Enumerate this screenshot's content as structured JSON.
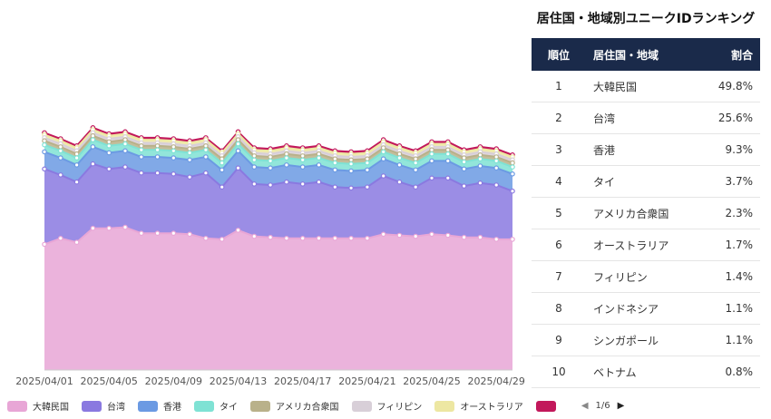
{
  "chart_data": {
    "type": "area",
    "stacked": true,
    "x": [
      "2025/04/01",
      "2025/04/02",
      "2025/04/03",
      "2025/04/04",
      "2025/04/05",
      "2025/04/06",
      "2025/04/07",
      "2025/04/08",
      "2025/04/09",
      "2025/04/10",
      "2025/04/11",
      "2025/04/12",
      "2025/04/13",
      "2025/04/14",
      "2025/04/15",
      "2025/04/16",
      "2025/04/17",
      "2025/04/18",
      "2025/04/19",
      "2025/04/20",
      "2025/04/21",
      "2025/04/22",
      "2025/04/23",
      "2025/04/24",
      "2025/04/25",
      "2025/04/26",
      "2025/04/27",
      "2025/04/28",
      "2025/04/29",
      "2025/04/30"
    ],
    "xtick_labels": [
      "2025/04/01",
      "2025/04/05",
      "2025/04/09",
      "2025/04/13",
      "2025/04/17",
      "2025/04/21",
      "2025/04/25",
      "2025/04/29"
    ],
    "series": [
      {
        "name": "大韓民国",
        "color": "#e8a6d6",
        "values": [
          125,
          131,
          127,
          141,
          141,
          142,
          136,
          136,
          136,
          135,
          131,
          130,
          139,
          133,
          132,
          131,
          131,
          131,
          131,
          131,
          131,
          135,
          134,
          133,
          135,
          134,
          132,
          132,
          130,
          130
        ]
      },
      {
        "name": "台湾",
        "color": "#8a79e0",
        "values": [
          75,
          63,
          60,
          64,
          59,
          60,
          60,
          60,
          59,
          57,
          65,
          52,
          62,
          52,
          52,
          56,
          54,
          56,
          51,
          50,
          51,
          58,
          53,
          49,
          56,
          57,
          51,
          54,
          54,
          48
        ]
      },
      {
        "name": "香港",
        "color": "#6b9ae3",
        "values": [
          17,
          17,
          17,
          17,
          16,
          16,
          16,
          16,
          16,
          17,
          16,
          17,
          17,
          17,
          17,
          17,
          17,
          17,
          17,
          17,
          17,
          17,
          17,
          17,
          17,
          17,
          17,
          17,
          17,
          17
        ]
      },
      {
        "name": "タイ",
        "color": "#7fe2d4",
        "values": [
          7,
          7,
          7,
          7,
          7,
          7,
          7,
          7,
          7,
          7,
          7,
          7,
          7,
          7,
          7,
          7,
          7,
          7,
          7,
          7,
          7,
          7,
          7,
          7,
          7,
          7,
          7,
          7,
          7,
          7
        ]
      },
      {
        "name": "アメリカ合衆国",
        "color": "#b9b18a",
        "values": [
          4,
          4,
          4,
          4,
          4,
          4,
          4,
          4,
          4,
          4,
          4,
          4,
          4,
          4,
          4,
          4,
          4,
          4,
          4,
          4,
          4,
          4,
          4,
          4,
          4,
          4,
          4,
          4,
          4,
          4
        ]
      },
      {
        "name": "フィリピン",
        "color": "#d8cfd8",
        "values": [
          3,
          3,
          3,
          3,
          3,
          3,
          3,
          3,
          3,
          3,
          3,
          3,
          3,
          3,
          3,
          3,
          3,
          3,
          3,
          3,
          3,
          3,
          3,
          3,
          3,
          3,
          3,
          3,
          3,
          3
        ]
      },
      {
        "name": "オーストラリア",
        "color": "#ede7a2",
        "values": [
          3,
          3,
          3,
          3,
          3,
          3,
          3,
          3,
          3,
          3,
          3,
          3,
          3,
          3,
          3,
          3,
          3,
          3,
          3,
          3,
          3,
          3,
          3,
          3,
          3,
          3,
          3,
          3,
          3,
          3
        ]
      },
      {
        "name": "",
        "color": "#c2185b",
        "values": [
          2,
          2,
          2,
          2,
          2,
          2,
          2,
          2,
          2,
          2,
          2,
          2,
          2,
          2,
          2,
          2,
          2,
          2,
          2,
          2,
          2,
          2,
          2,
          2,
          2,
          2,
          2,
          2,
          2,
          2
        ]
      }
    ],
    "ylim": [
      0,
      350
    ],
    "legend_position": "bottom",
    "legend_page": "1/6",
    "grid": false
  },
  "ranking": {
    "title": "居住国・地域別ユニークIDランキング",
    "headers": {
      "rank": "順位",
      "name": "居住国・地域",
      "share": "割合"
    },
    "rows": [
      {
        "rank": "1",
        "name": "大韓民国",
        "share": "49.8%"
      },
      {
        "rank": "2",
        "name": "台湾",
        "share": "25.6%"
      },
      {
        "rank": "3",
        "name": "香港",
        "share": "9.3%"
      },
      {
        "rank": "4",
        "name": "タイ",
        "share": "3.7%"
      },
      {
        "rank": "5",
        "name": "アメリカ合衆国",
        "share": "2.3%"
      },
      {
        "rank": "6",
        "name": "オーストラリア",
        "share": "1.7%"
      },
      {
        "rank": "7",
        "name": "フィリピン",
        "share": "1.4%"
      },
      {
        "rank": "8",
        "name": "インドネシア",
        "share": "1.1%"
      },
      {
        "rank": "9",
        "name": "シンガポール",
        "share": "1.1%"
      },
      {
        "rank": "10",
        "name": "ベトナム",
        "share": "0.8%"
      }
    ]
  },
  "legend": {
    "page": "1/6",
    "prev_icon": "chevron-left-icon",
    "next_icon": "chevron-right-icon"
  }
}
